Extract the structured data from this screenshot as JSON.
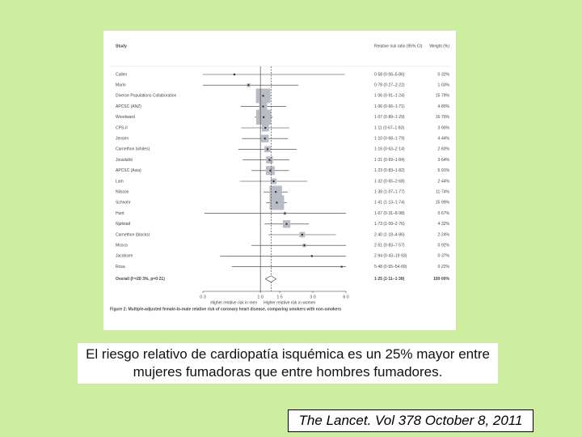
{
  "chart_data": {
    "type": "forest",
    "columns": [
      "Study",
      "Relative risk ratio (95% CI)",
      "Weight (%)"
    ],
    "categories": [
      "Cullen",
      "Marin",
      "Diverse Populations Collaboration",
      "APCSC (ANZ)",
      "Woodward",
      "CPS-II",
      "Jensen",
      "Carnethon (whites)",
      "Jousilahti",
      "APCSC (Asia)",
      "Lam",
      "Nilsson",
      "Schnohr",
      "Hunt",
      "Njølstad",
      "Carnethon (blacks)",
      "Mosca",
      "Jacobsen",
      "Rosa"
    ],
    "values": [
      0.58,
      0.78,
      1.06,
      1.06,
      1.07,
      1.11,
      1.1,
      1.16,
      1.21,
      1.23,
      1.32,
      1.38,
      1.41,
      1.67,
      1.73,
      2.4,
      2.51,
      2.94,
      5.48
    ],
    "lower": [
      0.06,
      0.27,
      0.91,
      0.66,
      0.89,
      0.67,
      0.68,
      0.63,
      0.69,
      0.83,
      0.65,
      1.07,
      1.13,
      0.31,
      1.09,
      1.18,
      0.83,
      0.43,
      0.55
    ],
    "upper": [
      5.86,
      2.22,
      1.24,
      1.71,
      1.29,
      1.83,
      1.79,
      2.14,
      1.84,
      1.82,
      2.68,
      1.77,
      1.74,
      8.98,
      2.76,
      4.86,
      7.57,
      19.93,
      54.69
    ],
    "value_labels": [
      "0·58 (0·06–5·86)",
      "0·78 (0·27–2·22)",
      "1·06 (0·91–1·24)",
      "1·06 (0·66–1·71)",
      "1·07 (0·89–1·29)",
      "1·11 (0·67–1·83)",
      "1·10 (0·68–1·79)",
      "1·16 (0·63–2·14)",
      "1·21 (0·69–1·84)",
      "1·23 (0·83–1·82)",
      "1·32 (0·65–2·68)",
      "1·38 (1·07–1·77)",
      "1·41 (1·13–1·74)",
      "1·67 (0·31–8·98)",
      "1·73 (1·09–2·76)",
      "2·40 (1·18–4·86)",
      "2·51 (0·83–7·57)",
      "2·94 (0·43–19·93)",
      "5·48 (0·55–54·69)"
    ],
    "weights": [
      0.32,
      1.03,
      15.79,
      4.8,
      16.7,
      3.9,
      4.44,
      2.83,
      3.64,
      5.91,
      2.44,
      11.74,
      15.99,
      0.67,
      4.32,
      2.24,
      0.92,
      0.37,
      0.22
    ],
    "weight_labels": [
      "0·32%",
      "1·03%",
      "15·79%",
      "4·80%",
      "16·70%",
      "3·90%",
      "4·44%",
      "2·83%",
      "3·64%",
      "5·91%",
      "2·44%",
      "11·74%",
      "15·99%",
      "0·67%",
      "4·32%",
      "2·24%",
      "0·92%",
      "0·37%",
      "0·22%"
    ],
    "overall": {
      "label": "Overall (I²=20·3%, p=0·21)",
      "value": 1.25,
      "lower": 1.11,
      "upper": 1.39,
      "value_label": "1·25 (1·11–1·39)",
      "weight": 100,
      "weight_label": "100·00%"
    },
    "xlim": [
      0.3,
      6.0
    ],
    "xticks": [
      {
        "value": 0.3,
        "label": "0·3"
      },
      {
        "value": 1.0,
        "label": "1·0"
      },
      {
        "value": 1.5,
        "label": "1·5"
      },
      {
        "value": 3.0,
        "label": "3·0"
      },
      {
        "value": 6.0,
        "label": "6·0"
      }
    ],
    "log_x": true,
    "reference": 1,
    "x_label_left": "Higher relative risk in men",
    "x_label_right": "Higher relative risk in women",
    "caption": "Figure 2: Multiple-adjusted female-to-male relative risk of coronary heart disease, comparing smokers with non-smokers"
  },
  "slide": {
    "text": "El riesgo relativo de cardiopatía isquémica es un 25% mayor entre mujeres fumadoras que entre hombres fumadores.",
    "citation": "The Lancet. Vol 378 October 8, 2011"
  }
}
